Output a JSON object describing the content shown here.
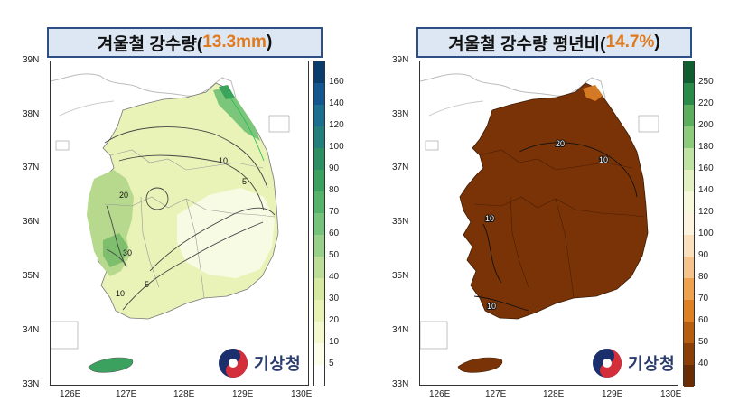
{
  "left": {
    "title_main": "겨울철 강수량(",
    "title_value": "13.3mm",
    "title_close": ")",
    "lat_ticks": [
      "39N",
      "38N",
      "37N",
      "36N",
      "35N",
      "34N",
      "33N"
    ],
    "lon_ticks": [
      "126E",
      "127E",
      "128E",
      "129E",
      "130E"
    ],
    "colorbar": {
      "labels": [
        "160",
        "140",
        "120",
        "100",
        "90",
        "80",
        "70",
        "60",
        "50",
        "40",
        "30",
        "20",
        "10",
        "5"
      ],
      "colors": [
        "#0a3d6b",
        "#14568f",
        "#1d6f8f",
        "#237f7a",
        "#2b8f63",
        "#3aa25e",
        "#55b26a",
        "#75c27a",
        "#98d08a",
        "#bbdd97",
        "#d6e9a3",
        "#e8f2b4",
        "#f3f8cf",
        "#fbfde8",
        "#ffffff"
      ]
    },
    "contour_labels": [
      "10",
      "5",
      "20",
      "30",
      "5",
      "10"
    ],
    "logo_text": "기상청"
  },
  "right": {
    "title_main": "겨울철 강수량 평년비(",
    "title_value": "14.7%",
    "title_close": ")",
    "lat_ticks": [
      "39N",
      "38N",
      "37N",
      "36N",
      "35N",
      "34N",
      "33N"
    ],
    "lon_ticks": [
      "126E",
      "127E",
      "128E",
      "129E",
      "130E"
    ],
    "colorbar": {
      "labels": [
        "250",
        "220",
        "200",
        "180",
        "160",
        "140",
        "120",
        "100",
        "90",
        "80",
        "70",
        "60",
        "50",
        "40"
      ],
      "colors": [
        "#0f5e2f",
        "#2a8a47",
        "#5aae5c",
        "#8ccb7a",
        "#bfe3a2",
        "#e3f0c2",
        "#f7f7dc",
        "#fdf4e0",
        "#fbe0be",
        "#f6c48b",
        "#efa14d",
        "#de7f22",
        "#b75d0f",
        "#8b3f06",
        "#6a2c02"
      ]
    },
    "contour_labels": [
      "20",
      "10",
      "10",
      "10"
    ],
    "logo_text": "기상청"
  }
}
